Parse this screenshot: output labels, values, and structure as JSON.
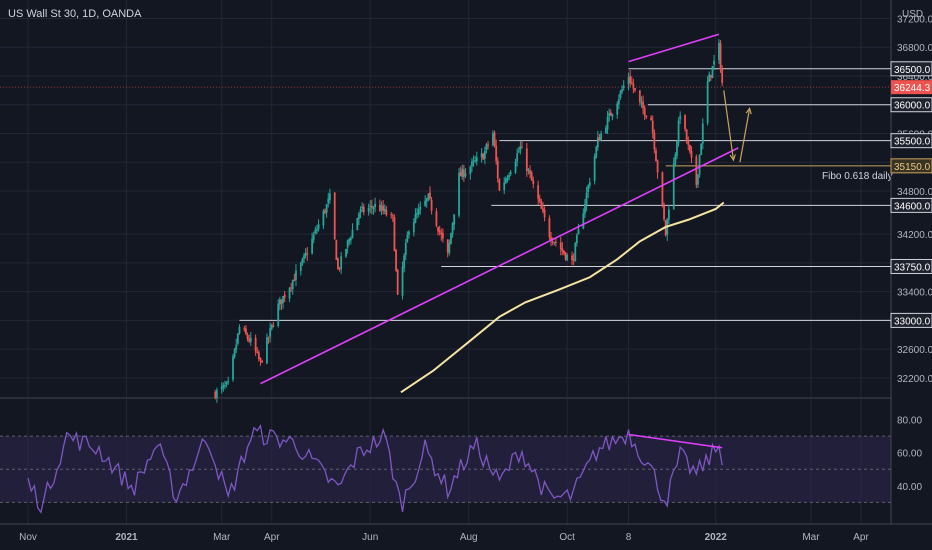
{
  "header": {
    "title": "US Wall St 30, 1D, OANDA",
    "currency": "USD"
  },
  "colors": {
    "background": "#131722",
    "grid": "#232735",
    "candle_up": "#26a69a",
    "candle_down": "#ef5350",
    "trendline": "#e040fb",
    "moving_average": "#f5e3a1",
    "fibo": "#c7a35e",
    "price_badge": "#ef5350",
    "rsi_line": "#7e57c2",
    "rsi_band": "#2a2346",
    "text": "#b2b5be"
  },
  "chart_data": [
    {
      "type": "candlestick",
      "title": "US Wall St 30, 1D, OANDA",
      "y_axis_label": "USD",
      "ylim": [
        31990,
        37290
      ],
      "y_ticks": [
        37200,
        36800,
        36400,
        36000,
        35600,
        35200,
        34800,
        34200,
        33800,
        33400,
        33000,
        32600,
        32200
      ],
      "x_ticks": [
        "Nov",
        "2021",
        "Mar",
        "Apr",
        "Jun",
        "Aug",
        "Oct",
        "8",
        "2022",
        "Mar",
        "Apr"
      ],
      "x_tick_dates": [
        "2020-11-01",
        "2021-01-01",
        "2021-03-01",
        "2021-04-01",
        "2021-06-01",
        "2021-08-01",
        "2021-10-01",
        "2021-11-08",
        "2022-01-01",
        "2022-03-01",
        "2022-04-01"
      ],
      "current_price": "36244.3",
      "level_lines": [
        {
          "label": "36500.0",
          "value": 36500,
          "start": "2021-11-08"
        },
        {
          "label": "36000.0",
          "value": 36000,
          "start": "2021-11-20"
        },
        {
          "label": "35500.0",
          "value": 35500,
          "start": "2021-08-20"
        },
        {
          "label": "35150.0",
          "value": 35150,
          "start": "2021-12-01",
          "fibo": true
        },
        {
          "label": "34600.0",
          "value": 34600,
          "start": "2021-08-15"
        },
        {
          "label": "33750.0",
          "value": 33750,
          "start": "2021-07-15"
        },
        {
          "label": "33000.0",
          "value": 33000,
          "start": "2021-03-12"
        }
      ],
      "fibo_label": "Fibo 0.618 daily",
      "trendlines": [
        {
          "from": {
            "date": "2021-03-25",
            "value": 32120
          },
          "to": {
            "date": "2022-01-15",
            "value": 35400
          }
        },
        {
          "from": {
            "date": "2021-11-08",
            "value": 36600
          },
          "to": {
            "date": "2022-01-03",
            "value": 36980
          }
        }
      ],
      "projection_arrows": [
        {
          "from": {
            "date": "2022-01-06",
            "value": 36200
          },
          "to": {
            "date": "2022-01-12",
            "value": 35230
          }
        },
        {
          "from": {
            "date": "2022-01-16",
            "value": 35200
          },
          "to": {
            "date": "2022-01-22",
            "value": 35950
          }
        }
      ],
      "moving_average": [
        {
          "date": "2021-06-20",
          "value": 32000
        },
        {
          "date": "2021-07-10",
          "value": 32300
        },
        {
          "date": "2021-08-01",
          "value": 32700
        },
        {
          "date": "2021-08-20",
          "value": 33050
        },
        {
          "date": "2021-09-05",
          "value": 33250
        },
        {
          "date": "2021-09-25",
          "value": 33420
        },
        {
          "date": "2021-10-15",
          "value": 33600
        },
        {
          "date": "2021-11-01",
          "value": 33850
        },
        {
          "date": "2021-11-15",
          "value": 34100
        },
        {
          "date": "2021-12-01",
          "value": 34300
        },
        {
          "date": "2021-12-15",
          "value": 34400
        },
        {
          "date": "2022-01-01",
          "value": 34550
        },
        {
          "date": "2022-01-06",
          "value": 34640
        }
      ],
      "price_path": [
        {
          "date": "2021-02-25",
          "value": 31990
        },
        {
          "date": "2021-03-05",
          "value": 32100
        },
        {
          "date": "2021-03-12",
          "value": 32900
        },
        {
          "date": "2021-03-19",
          "value": 32700
        },
        {
          "date": "2021-03-25",
          "value": 32400
        },
        {
          "date": "2021-04-05",
          "value": 33200
        },
        {
          "date": "2021-04-20",
          "value": 33800
        },
        {
          "date": "2021-05-07",
          "value": 34700
        },
        {
          "date": "2021-05-12",
          "value": 33700
        },
        {
          "date": "2021-05-25",
          "value": 34500
        },
        {
          "date": "2021-06-05",
          "value": 34600
        },
        {
          "date": "2021-06-15",
          "value": 34400
        },
        {
          "date": "2021-06-18",
          "value": 33300
        },
        {
          "date": "2021-06-25",
          "value": 34300
        },
        {
          "date": "2021-07-07",
          "value": 34700
        },
        {
          "date": "2021-07-19",
          "value": 33900
        },
        {
          "date": "2021-07-26",
          "value": 35000
        },
        {
          "date": "2021-08-10",
          "value": 35300
        },
        {
          "date": "2021-08-16",
          "value": 35600
        },
        {
          "date": "2021-08-20",
          "value": 34800
        },
        {
          "date": "2021-09-02",
          "value": 35400
        },
        {
          "date": "2021-09-20",
          "value": 34200
        },
        {
          "date": "2021-10-04",
          "value": 33800
        },
        {
          "date": "2021-10-20",
          "value": 35500
        },
        {
          "date": "2021-11-08",
          "value": 36400
        },
        {
          "date": "2021-11-15",
          "value": 36000
        },
        {
          "date": "2021-11-22",
          "value": 35800
        },
        {
          "date": "2021-12-01",
          "value": 34200
        },
        {
          "date": "2021-12-03",
          "value": 34600
        },
        {
          "date": "2021-12-10",
          "value": 35900
        },
        {
          "date": "2021-12-20",
          "value": 34900
        },
        {
          "date": "2021-12-27",
          "value": 36300
        },
        {
          "date": "2022-01-03",
          "value": 36800
        },
        {
          "date": "2022-01-05",
          "value": 36300
        }
      ]
    },
    {
      "type": "line",
      "title": "",
      "ylim": [
        20,
        90
      ],
      "y_ticks": [
        80,
        60,
        40
      ],
      "band": [
        30,
        70
      ],
      "divergence_line": {
        "from": {
          "date": "2021-11-08",
          "value": 71
        },
        "to": {
          "date": "2022-01-05",
          "value": 63
        }
      },
      "series": [
        {
          "date": "2020-11-01",
          "value": 42
        },
        {
          "date": "2020-11-10",
          "value": 28
        },
        {
          "date": "2020-11-25",
          "value": 70
        },
        {
          "date": "2020-12-15",
          "value": 62
        },
        {
          "date": "2021-01-05",
          "value": 38
        },
        {
          "date": "2021-01-20",
          "value": 65
        },
        {
          "date": "2021-02-01",
          "value": 33
        },
        {
          "date": "2021-02-20",
          "value": 70
        },
        {
          "date": "2021-03-05",
          "value": 32
        },
        {
          "date": "2021-03-20",
          "value": 72
        },
        {
          "date": "2021-04-15",
          "value": 66
        },
        {
          "date": "2021-05-12",
          "value": 38
        },
        {
          "date": "2021-05-25",
          "value": 60
        },
        {
          "date": "2021-06-10",
          "value": 70
        },
        {
          "date": "2021-06-20",
          "value": 28
        },
        {
          "date": "2021-07-05",
          "value": 62
        },
        {
          "date": "2021-07-19",
          "value": 38
        },
        {
          "date": "2021-08-05",
          "value": 65
        },
        {
          "date": "2021-08-20",
          "value": 42
        },
        {
          "date": "2021-09-02",
          "value": 62
        },
        {
          "date": "2021-09-20",
          "value": 32
        },
        {
          "date": "2021-10-04",
          "value": 34
        },
        {
          "date": "2021-10-20",
          "value": 62
        },
        {
          "date": "2021-11-08",
          "value": 72
        },
        {
          "date": "2021-11-22",
          "value": 50
        },
        {
          "date": "2021-12-01",
          "value": 30
        },
        {
          "date": "2021-12-10",
          "value": 58
        },
        {
          "date": "2021-12-20",
          "value": 47
        },
        {
          "date": "2022-01-03",
          "value": 64
        },
        {
          "date": "2022-01-06",
          "value": 55
        }
      ]
    }
  ]
}
